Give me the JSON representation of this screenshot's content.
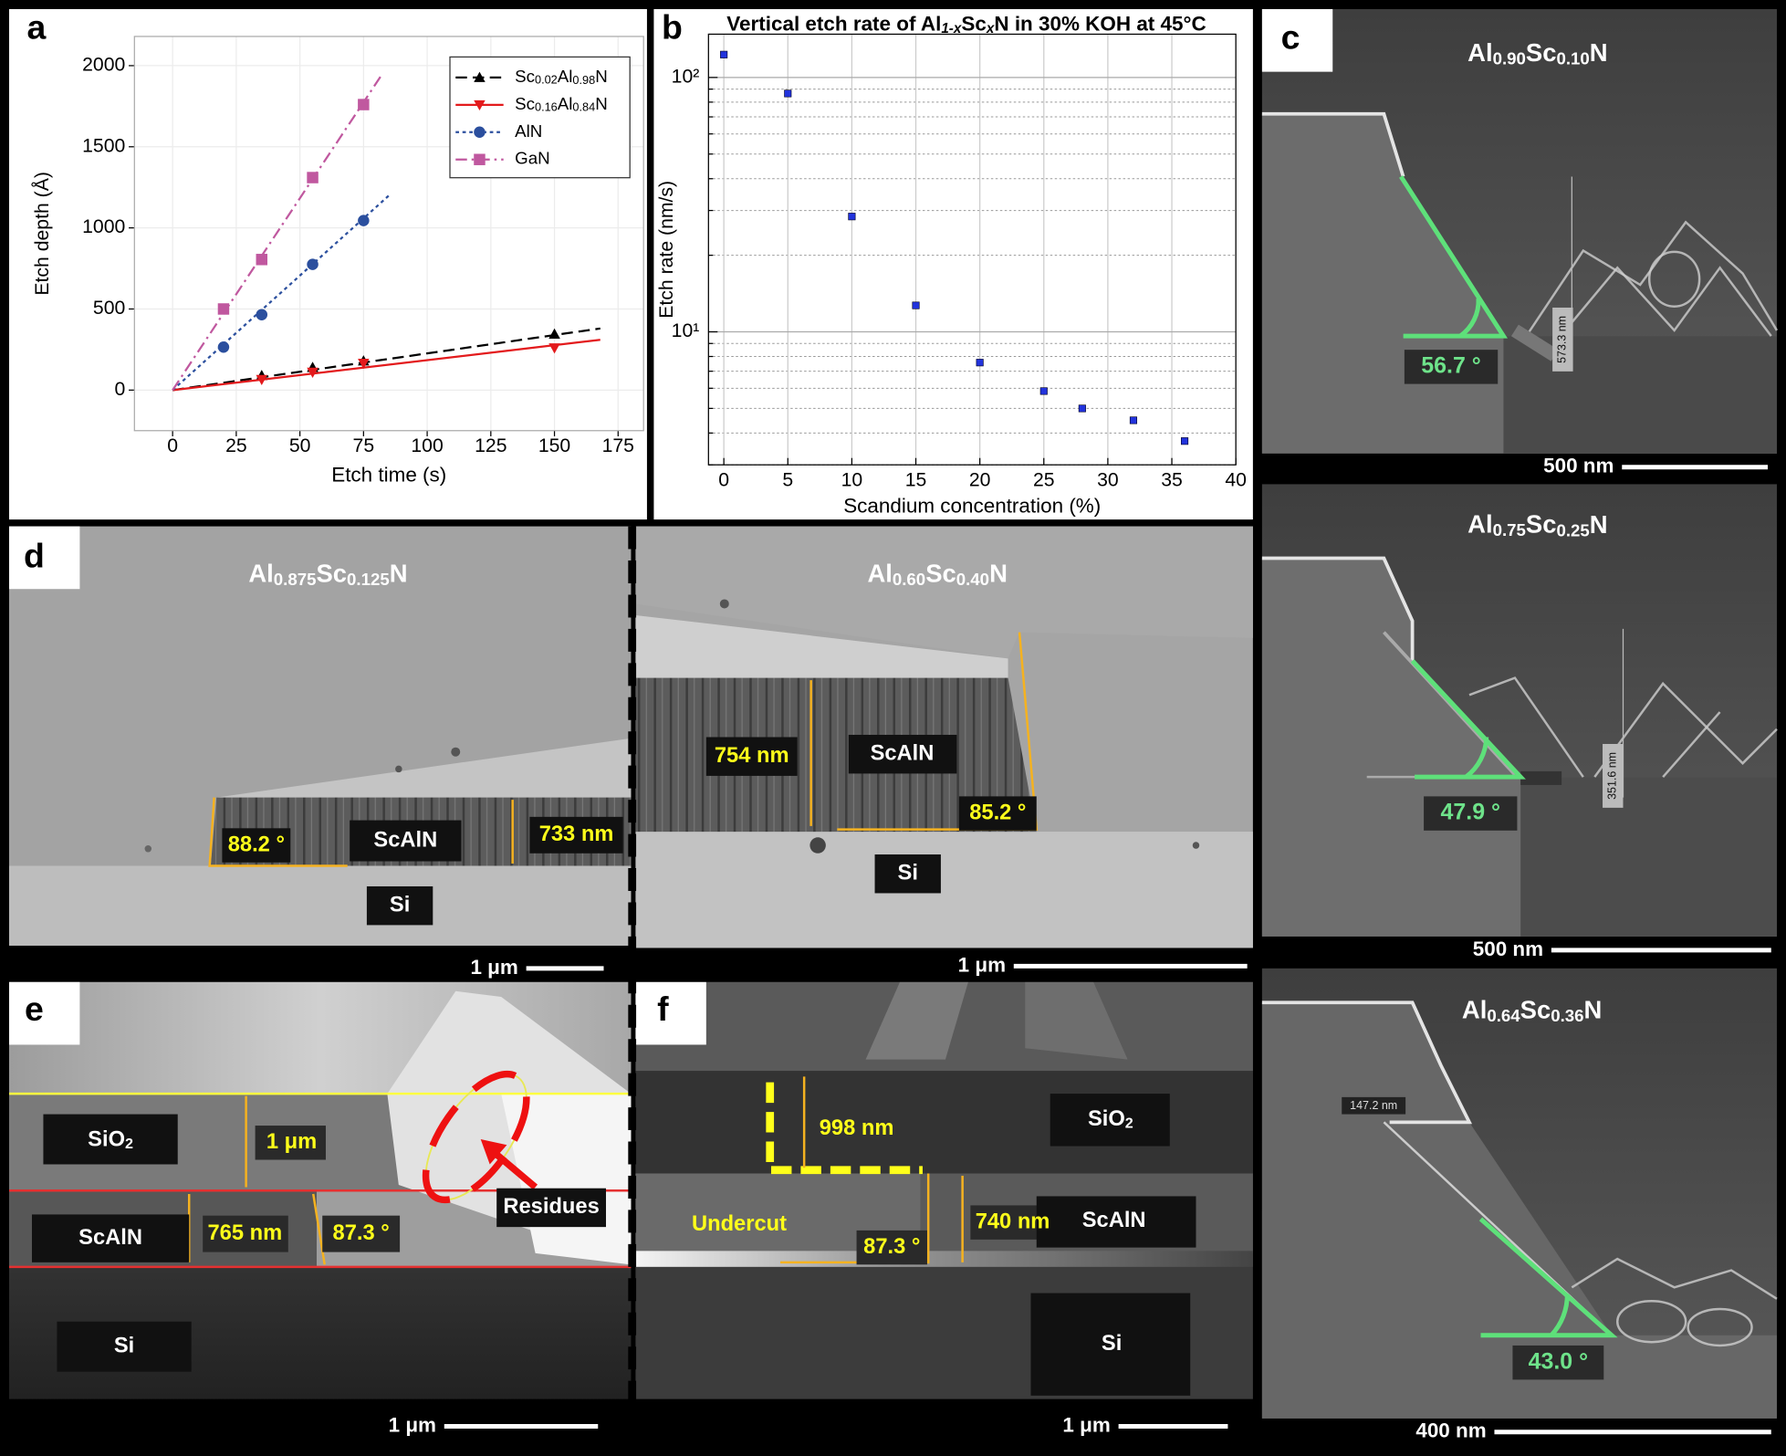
{
  "panel_labels": [
    "a",
    "b",
    "c",
    "d",
    "e",
    "f"
  ],
  "chart_data": [
    {
      "type": "scatter",
      "x_label": "Etch time (s)",
      "y_label": "Etch depth (Å)",
      "xlim": [
        -15,
        185
      ],
      "ylim": [
        -250,
        2180
      ],
      "xticks": [
        0,
        25,
        50,
        75,
        100,
        125,
        150,
        175
      ],
      "yticks": [
        0,
        500,
        1000,
        1500,
        2000
      ],
      "grid": true,
      "legend": "upper right",
      "series": [
        {
          "name": "Sc0.02Al0.98N",
          "color": "#000000",
          "marker": "triangle-up",
          "linestyle": "dashed",
          "x": [
            35,
            55,
            75,
            150
          ],
          "values": [
            90,
            140,
            180,
            345
          ],
          "fit_x": [
            0,
            168
          ],
          "fit_values": [
            0,
            380
          ]
        },
        {
          "name": "Sc0.16Al0.84N",
          "color": "#e31a1c",
          "marker": "triangle-down",
          "linestyle": "solid",
          "x": [
            35,
            55,
            75,
            150
          ],
          "values": [
            65,
            110,
            165,
            260
          ],
          "fit_x": [
            0,
            168
          ],
          "fit_values": [
            0,
            310
          ]
        },
        {
          "name": "AlN",
          "color": "#2b4f9e",
          "marker": "circle",
          "linestyle": "dotted",
          "x": [
            20,
            35,
            55,
            75
          ],
          "values": [
            265,
            465,
            775,
            1045
          ],
          "fit_x": [
            0,
            85
          ],
          "fit_values": [
            0,
            1200
          ]
        },
        {
          "name": "GaN",
          "color": "#c0589f",
          "marker": "square",
          "linestyle": "dashdot",
          "x": [
            20,
            35,
            55,
            75
          ],
          "values": [
            500,
            805,
            1310,
            1760
          ],
          "fit_x": [
            0,
            82
          ],
          "fit_values": [
            0,
            1940
          ]
        }
      ]
    },
    {
      "type": "scatter",
      "title": "Vertical etch rate of Al1-xScxN in 30% KOH at 45°C",
      "x_label": "Scandium concentration (%)",
      "y_label": "Etch rate (nm/s)",
      "xlim": [
        -1.2,
        40
      ],
      "ylim": [
        3,
        148
      ],
      "yscale": "log",
      "xticks": [
        0,
        5,
        10,
        15,
        20,
        25,
        30,
        35,
        40
      ],
      "yticks": [
        {
          "value": 10,
          "label": "10¹"
        },
        {
          "value": 100,
          "label": "10²"
        }
      ],
      "minor_yticks": [
        3,
        4,
        5,
        6,
        7,
        8,
        9,
        20,
        30,
        40,
        50,
        60,
        70,
        80,
        90
      ],
      "grid": true,
      "series": [
        {
          "color": "#2233dd",
          "marker": "square",
          "x": [
            0,
            5,
            10,
            15,
            20,
            25,
            28,
            32,
            36
          ],
          "values": [
            123,
            86.5,
            28.4,
            12.7,
            7.57,
            5.85,
            5.0,
            4.49,
            3.72
          ]
        }
      ]
    }
  ],
  "panel_c": [
    {
      "material": "Al0.90Sc0.10N",
      "angle": "56.7 °",
      "height": "573.3 nm",
      "scale_bar": "500 nm"
    },
    {
      "material": "Al0.75Sc0.25N",
      "angle": "47.9 °",
      "height": "351.6 nm",
      "scale_bar": "500 nm"
    },
    {
      "material": "Al0.64Sc0.36N",
      "angle": "43.0 °",
      "height": "147.2 nm",
      "scale_bar": "400 nm"
    }
  ],
  "panel_d": [
    {
      "material": "Al0.875Sc0.125N",
      "angle": "88.2 °",
      "layer": "ScAlN",
      "thickness": "733 nm",
      "substrate": "Si",
      "scale_bar": "1 μm"
    },
    {
      "material": "Al0.60Sc0.40N",
      "thickness": "754 nm",
      "layer": "ScAlN",
      "angle": "85.2 °",
      "substrate": "Si",
      "scale_bar": "1 μm"
    }
  ],
  "panel_e": {
    "oxide": "SiO2",
    "oxide_thickness": "1 μm",
    "layer": "ScAlN",
    "thickness": "765 nm",
    "angle": "87.3 °",
    "annotation": "Residues",
    "substrate": "Si",
    "scale_bar": "1 μm"
  },
  "panel_f": {
    "oxide_thickness": "998 nm",
    "oxide": "SiO2",
    "annotation": "Undercut",
    "angle": "87.3 °",
    "thickness": "740 nm",
    "layer": "ScAlN",
    "substrate": "Si",
    "scale_bar": "1 μm"
  }
}
